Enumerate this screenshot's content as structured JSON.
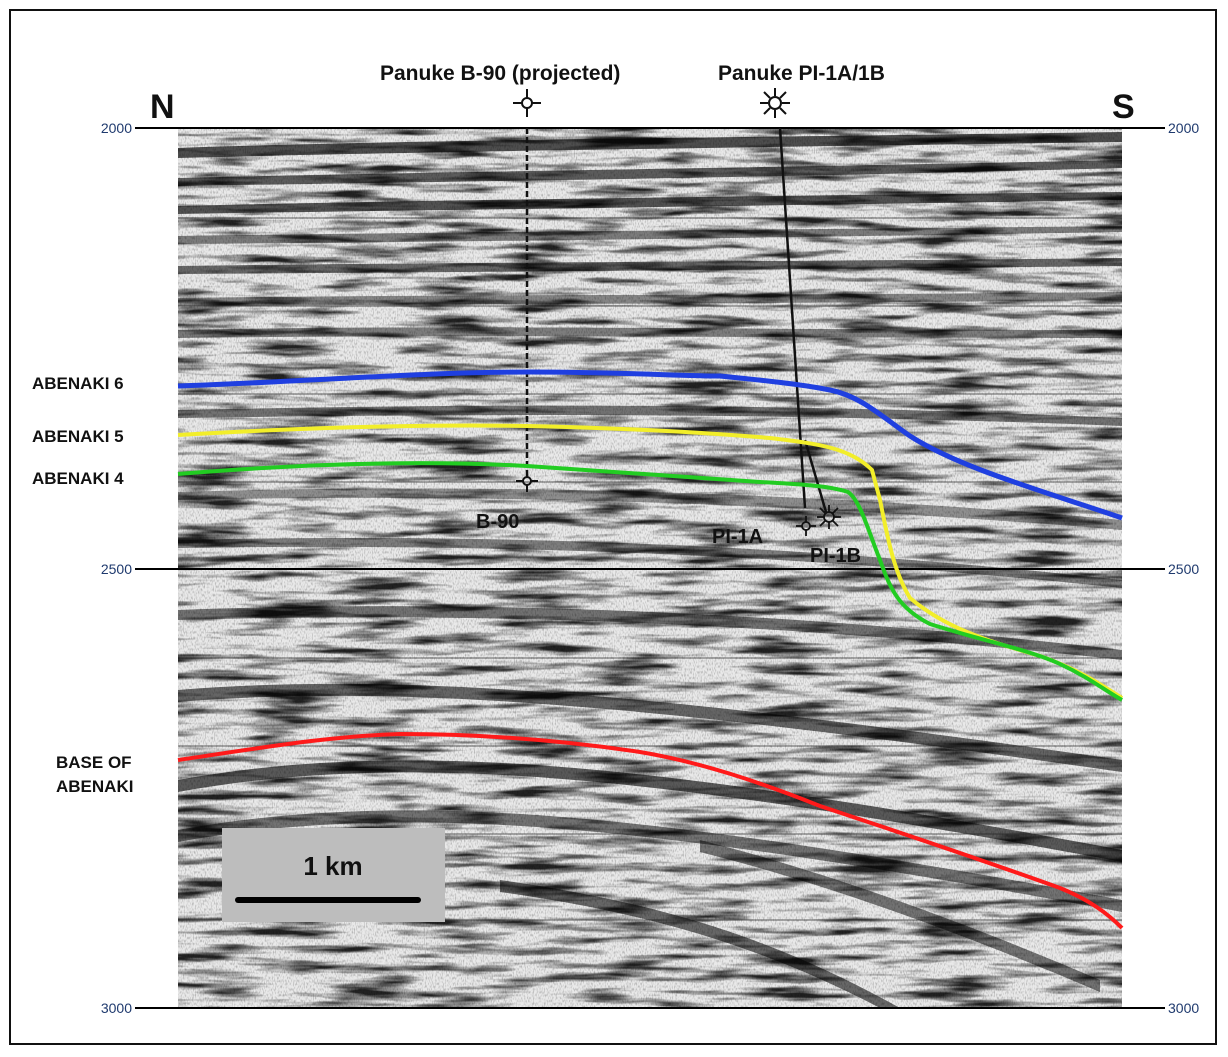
{
  "directions": {
    "left": "N",
    "right": "S"
  },
  "wells": [
    {
      "title": "Panuke B-90 (projected)",
      "bottom_label": "B-90",
      "symbol": "dry-hole-icon"
    },
    {
      "title": "Panuke PI-1A/1B",
      "bottom_label_a": "PI-1A",
      "bottom_label_b": "PI-1B",
      "symbol": "oil-gas-show-icon"
    }
  ],
  "time_axis": {
    "ticks": [
      "2000",
      "2500",
      "3000"
    ]
  },
  "horizons": [
    {
      "name": "ABENAKI 6",
      "color": "#1f3fe0"
    },
    {
      "name": "ABENAKI 5",
      "color": "#f2ee2a"
    },
    {
      "name": "ABENAKI 4",
      "color": "#22cc22"
    },
    {
      "name_line1": "BASE OF",
      "name_line2": "ABENAKI",
      "color": "#ff1a1a"
    }
  ],
  "scale_bar": {
    "label": "1 km",
    "background": "#bdbdbd"
  }
}
